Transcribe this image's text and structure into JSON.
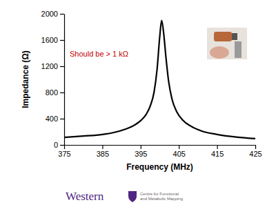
{
  "chart_data": {
    "type": "line",
    "x_label": "Frequency (MHz)",
    "y_label": "Impedance (Ω)",
    "x": [
      375,
      380,
      385,
      388,
      391,
      393,
      395,
      396.5,
      397.5,
      398.5,
      399.3,
      400,
      400.5,
      401,
      401.6,
      402.3,
      403.2,
      404.5,
      406,
      408,
      411,
      415,
      420,
      425
    ],
    "values": [
      115,
      135,
      160,
      190,
      240,
      290,
      370,
      470,
      590,
      800,
      1150,
      1650,
      1900,
      1720,
      1350,
      980,
      700,
      500,
      380,
      290,
      210,
      160,
      120,
      95
    ],
    "color": "#000000",
    "xlim": [
      375,
      425
    ],
    "xticks": [
      375,
      385,
      395,
      405,
      415,
      425
    ],
    "ylim": [
      0,
      2000
    ],
    "yticks": [
      0,
      400,
      800,
      1200,
      1600,
      2000
    ],
    "grid": false,
    "annotations": [
      {
        "text": "Should be > 1 kΩ",
        "color": "#c00000"
      }
    ]
  },
  "footer": {
    "logo": "Western",
    "logo_color": "#4f2683",
    "caption": [
      "Centre for Functional",
      "and Metabolic Mapping"
    ]
  }
}
